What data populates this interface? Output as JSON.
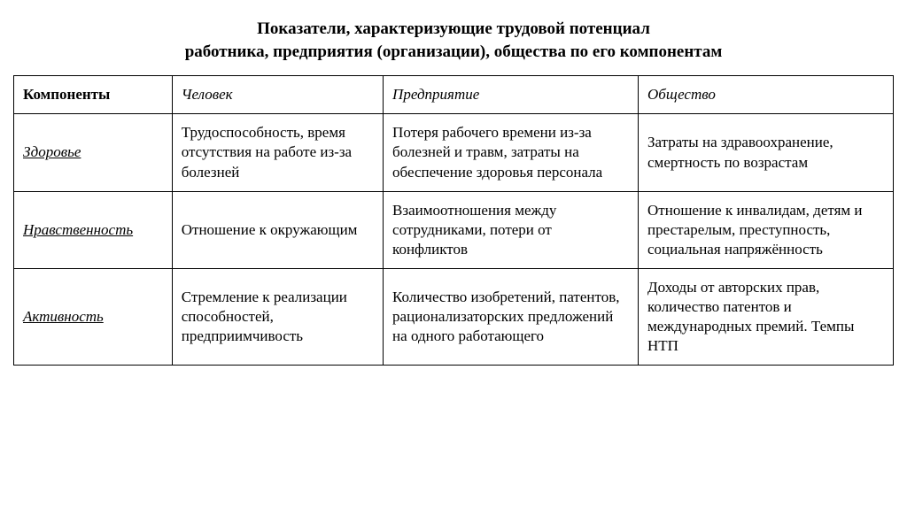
{
  "title": {
    "line1": "Показатели, характеризующие трудовой потенциал",
    "line2": "работника, предприятия (организации), общества по его компонентам"
  },
  "table": {
    "columns": [
      {
        "label": "Компоненты",
        "header_style": "bold"
      },
      {
        "label": "Человек",
        "header_style": "italic"
      },
      {
        "label": "Предприятие",
        "header_style": "italic"
      },
      {
        "label": "Общество",
        "header_style": "italic"
      }
    ],
    "rows": [
      {
        "component": "Здоровье",
        "human": "Трудоспособность, время отсутствия на работе из-за болезней",
        "enterprise": "Потеря рабочего времени из-за болезней и травм, затраты на обеспечение здоровья персонала",
        "society": "Затраты на здравоохранение, смертность по возрастам"
      },
      {
        "component": "Нравственность",
        "human": "Отношение к окружающим",
        "enterprise": "Взаимоотношения между сотрудниками, потери от конфликтов",
        "society": "Отношение к инвалидам, детям и престарелым, преступность, социальная напряжённость"
      },
      {
        "component": "Активность",
        "human": "Стремление к реализации способностей, предприимчивость",
        "enterprise": "Количество изобретений, патентов, рационализаторских предложений на одного работающего",
        "society": "Доходы от авторских прав, количество патентов и международных премий. Темпы НТП"
      }
    ]
  },
  "styling": {
    "background_color": "#ffffff",
    "border_color": "#000000",
    "text_color": "#000000",
    "title_fontsize": 19,
    "cell_fontsize": 17,
    "font_family": "Times New Roman"
  }
}
